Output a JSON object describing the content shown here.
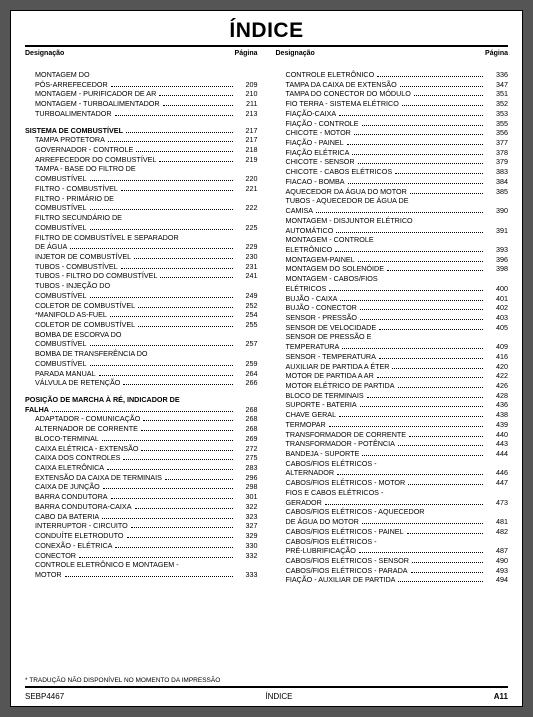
{
  "title": "ÍNDICE",
  "colhead_left": "Designação",
  "colhead_right": "Página",
  "footnote": "* TRADUÇÃO NÃO DISPONÍVEL NO MOMENTO DA IMPRESSÃO",
  "footer_left": "SEBP4467",
  "footer_center": "ÍNDICE",
  "footer_right": "A11",
  "left": [
    {
      "label": "MONTAGEM DO",
      "page": "",
      "indent": 1,
      "cont": true
    },
    {
      "label": "PÓS-ARREFECEDOR",
      "page": "209",
      "indent": 1
    },
    {
      "label": "MONTAGEM - PURIFICADOR DE AR",
      "page": "210",
      "indent": 1
    },
    {
      "label": "MONTAGEM - TURBOALIMENTADOR",
      "page": "211",
      "indent": 1
    },
    {
      "label": "TURBOALIMENTADOR",
      "page": "213",
      "indent": 1
    },
    {
      "spacer": true
    },
    {
      "label": "SISTEMA DE COMBUSTÍVEL",
      "page": "217",
      "bold": true,
      "indent": 0
    },
    {
      "label": "TAMPA PROTETORA",
      "page": "217",
      "indent": 1
    },
    {
      "label": "GOVERNADOR - CONTROLE",
      "page": "218",
      "indent": 1
    },
    {
      "label": "ARREFECEDOR DO COMBUSTÍVEL",
      "page": "219",
      "indent": 1
    },
    {
      "label": "TAMPA - BASE DO FILTRO DE",
      "page": "",
      "indent": 1,
      "cont": true
    },
    {
      "label": "COMBUSTÍVEL",
      "page": "220",
      "indent": 1
    },
    {
      "label": "FILTRO - COMBUSTÍVEL",
      "page": "221",
      "indent": 1
    },
    {
      "label": "FILTRO - PRIMÁRIO DE",
      "page": "",
      "indent": 1,
      "cont": true
    },
    {
      "label": "COMBUSTÍVEL",
      "page": "222",
      "indent": 1
    },
    {
      "label": "FILTRO SECUNDÁRIO DE",
      "page": "",
      "indent": 1,
      "cont": true
    },
    {
      "label": "COMBUSTÍVEL",
      "page": "225",
      "indent": 1
    },
    {
      "label": "FILTRO DE COMBUSTÍVEL E SEPARADOR",
      "page": "",
      "indent": 1,
      "cont": true
    },
    {
      "label": "DE ÁGUA",
      "page": "229",
      "indent": 1
    },
    {
      "label": "INJETOR DE COMBUSTÍVEL",
      "page": "230",
      "indent": 1
    },
    {
      "label": "TUBOS - COMBUSTÍVEL",
      "page": "231",
      "indent": 1
    },
    {
      "label": "TUBOS - FILTRO DO COMBUSTÍVEL",
      "page": "241",
      "indent": 1
    },
    {
      "label": "TUBOS - INJEÇÃO DO",
      "page": "",
      "indent": 1,
      "cont": true
    },
    {
      "label": "COMBUSTÍVEL",
      "page": "249",
      "indent": 1
    },
    {
      "label": "COLETOR DE COMBUSTÍVEL",
      "page": "252",
      "indent": 1
    },
    {
      "label": "*MANIFOLD AS-FUEL",
      "page": "254",
      "indent": 1
    },
    {
      "label": "COLETOR DE COMBUSTÍVEL",
      "page": "255",
      "indent": 1
    },
    {
      "label": "BOMBA DE ESCORVA DO",
      "page": "",
      "indent": 1,
      "cont": true
    },
    {
      "label": "COMBUSTÍVEL",
      "page": "257",
      "indent": 1
    },
    {
      "label": "BOMBA DE TRANSFERÊNCIA DO",
      "page": "",
      "indent": 1,
      "cont": true
    },
    {
      "label": "COMBUSTÍVEL",
      "page": "259",
      "indent": 1
    },
    {
      "label": "PARADA MANUAL",
      "page": "264",
      "indent": 1
    },
    {
      "label": "VÁLVULA DE RETENÇÃO",
      "page": "266",
      "indent": 1
    },
    {
      "spacer": true
    },
    {
      "label": "POSIÇÃO DE MARCHA À RÉ, INDICADOR DE",
      "page": "",
      "bold": true,
      "indent": 0,
      "cont": true
    },
    {
      "label": "FALHA",
      "page": "268",
      "bold": true,
      "indent": 0
    },
    {
      "label": "ADAPTADOR - COMUNICAÇÃO",
      "page": "268",
      "indent": 1
    },
    {
      "label": "ALTERNADOR DE CORRENTE",
      "page": "268",
      "indent": 1
    },
    {
      "label": "BLOCO-TERMINAL",
      "page": "269",
      "indent": 1
    },
    {
      "label": "CAIXA ELÉTRICA - EXTENSÃO",
      "page": "272",
      "indent": 1
    },
    {
      "label": "CAIXA DOS CONTROLES",
      "page": "275",
      "indent": 1
    },
    {
      "label": "CAIXA ELETRÔNICA",
      "page": "283",
      "indent": 1
    },
    {
      "label": "EXTENSÃO DA CAIXA DE TERMINAIS",
      "page": "296",
      "indent": 1
    },
    {
      "label": "CAIXA DE JUNÇÃO",
      "page": "298",
      "indent": 1
    },
    {
      "label": "BARRA CONDUTORA",
      "page": "301",
      "indent": 1
    },
    {
      "label": "BARRA CONDUTORA-CAIXA",
      "page": "322",
      "indent": 1
    },
    {
      "label": "CABO DA BATERIA",
      "page": "323",
      "indent": 1
    },
    {
      "label": "INTERRUPTOR - CIRCUITO",
      "page": "327",
      "indent": 1
    },
    {
      "label": "CONDUÍTE ELETRODUTO",
      "page": "329",
      "indent": 1
    },
    {
      "label": "CONEXÃO - ELÉTRICA",
      "page": "330",
      "indent": 1
    },
    {
      "label": "CONECTOR",
      "page": "332",
      "indent": 1
    },
    {
      "label": "CONTROLE ELETRÔNICO E MONTAGEM -",
      "page": "",
      "indent": 1,
      "cont": true
    },
    {
      "label": "MOTOR",
      "page": "333",
      "indent": 1
    }
  ],
  "right": [
    {
      "label": "CONTROLE ELETRÔNICO",
      "page": "336",
      "indent": 1
    },
    {
      "label": "TAMPA DA CAIXA DE EXTENSÃO",
      "page": "347",
      "indent": 1
    },
    {
      "label": "TAMPA DO CONECTOR DO MÓDULO",
      "page": "351",
      "indent": 1
    },
    {
      "label": "FIO TERRA - SISTEMA ELÉTRICO",
      "page": "352",
      "indent": 1
    },
    {
      "label": "FIAÇÃO-CAIXA",
      "page": "353",
      "indent": 1
    },
    {
      "label": "FIAÇÃO - CONTROLE",
      "page": "355",
      "indent": 1
    },
    {
      "label": "CHICOTE - MOTOR",
      "page": "356",
      "indent": 1
    },
    {
      "label": "FIAÇÃO - PAINEL",
      "page": "377",
      "indent": 1
    },
    {
      "label": "FIAÇÃO ELÉTRICA",
      "page": "378",
      "indent": 1
    },
    {
      "label": "CHICOTE - SENSOR",
      "page": "379",
      "indent": 1
    },
    {
      "label": "CHICOTE - CABOS ELÉTRICOS",
      "page": "383",
      "indent": 1
    },
    {
      "label": "FIACAO - BOMBA",
      "page": "384",
      "indent": 1
    },
    {
      "label": "AQUECEDOR DA ÁGUA DO MOTOR",
      "page": "385",
      "indent": 1
    },
    {
      "label": "TUBOS - AQUECEDOR DE ÁGUA DE",
      "page": "",
      "indent": 1,
      "cont": true
    },
    {
      "label": "CAMISA",
      "page": "390",
      "indent": 1
    },
    {
      "label": "MONTAGEM - DISJUNTOR ELÉTRICO",
      "page": "",
      "indent": 1,
      "cont": true
    },
    {
      "label": "AUTOMÁTICO",
      "page": "391",
      "indent": 1
    },
    {
      "label": "MONTAGEM - CONTROLE",
      "page": "",
      "indent": 1,
      "cont": true
    },
    {
      "label": "ELETRÔNICO",
      "page": "393",
      "indent": 1
    },
    {
      "label": "MONTAGEM-PAINEL",
      "page": "396",
      "indent": 1
    },
    {
      "label": "MONTAGEM DO SOLENÓIDE",
      "page": "398",
      "indent": 1
    },
    {
      "label": "MONTAGEM - CABOS/FIOS",
      "page": "",
      "indent": 1,
      "cont": true
    },
    {
      "label": "ELÉTRICOS",
      "page": "400",
      "indent": 1
    },
    {
      "label": "BUJÃO - CAIXA",
      "page": "401",
      "indent": 1
    },
    {
      "label": "BUJÃO - CONECTOR",
      "page": "402",
      "indent": 1
    },
    {
      "label": "SENSOR - PRESSÃO",
      "page": "403",
      "indent": 1
    },
    {
      "label": "SENSOR DE VELOCIDADE",
      "page": "405",
      "indent": 1
    },
    {
      "label": "SENSOR DE PRESSÃO E",
      "page": "",
      "indent": 1,
      "cont": true
    },
    {
      "label": "TEMPERATURA",
      "page": "409",
      "indent": 1
    },
    {
      "label": "SENSOR - TEMPERATURA",
      "page": "416",
      "indent": 1
    },
    {
      "label": "AUXILIAR DE PARTIDA A ÉTER",
      "page": "420",
      "indent": 1
    },
    {
      "label": "MOTOR DE PARTIDA A AR",
      "page": "422",
      "indent": 1
    },
    {
      "label": "MOTOR ELÉTRICO DE PARTIDA",
      "page": "426",
      "indent": 1
    },
    {
      "label": "BLOCO DE TERMINAIS",
      "page": "428",
      "indent": 1
    },
    {
      "label": "SUPORTE - BATERIA",
      "page": "436",
      "indent": 1
    },
    {
      "label": "CHAVE GERAL",
      "page": "438",
      "indent": 1
    },
    {
      "label": "TERMOPAR",
      "page": "439",
      "indent": 1
    },
    {
      "label": "TRANSFORMADOR DE CORRENTE",
      "page": "440",
      "indent": 1
    },
    {
      "label": "TRANSFORMADOR - POTÊNCIA",
      "page": "443",
      "indent": 1
    },
    {
      "label": "BANDEJA - SUPORTE",
      "page": "444",
      "indent": 1
    },
    {
      "label": "CABOS/FIOS ELÉTRICOS -",
      "page": "",
      "indent": 1,
      "cont": true
    },
    {
      "label": "ALTERNADOR",
      "page": "446",
      "indent": 1
    },
    {
      "label": "CABOS/FIOS ELÉTRICOS - MOTOR",
      "page": "447",
      "indent": 1
    },
    {
      "label": "FIOS E CABOS ELÉTRICOS -",
      "page": "",
      "indent": 1,
      "cont": true
    },
    {
      "label": "GERADOR",
      "page": "473",
      "indent": 1
    },
    {
      "label": "CABOS/FIOS ELÉTRICOS - AQUECEDOR",
      "page": "",
      "indent": 1,
      "cont": true
    },
    {
      "label": "DE ÁGUA DO MOTOR",
      "page": "481",
      "indent": 1
    },
    {
      "label": "CABOS/FIOS ELÉTRICOS - PAINEL",
      "page": "482",
      "indent": 1
    },
    {
      "label": "CABOS/FIOS ELÉTRICOS -",
      "page": "",
      "indent": 1,
      "cont": true
    },
    {
      "label": "PRÉ-LUBRIFICAÇÃO",
      "page": "487",
      "indent": 1
    },
    {
      "label": "CABOS/FIOS ELÉTRICOS - SENSOR",
      "page": "490",
      "indent": 1
    },
    {
      "label": "CABOS/FIOS ELÉTRICOS - PARADA",
      "page": "493",
      "indent": 1
    },
    {
      "label": "FIAÇÃO - AUXILIAR DE PARTIDA",
      "page": "494",
      "indent": 1
    }
  ]
}
